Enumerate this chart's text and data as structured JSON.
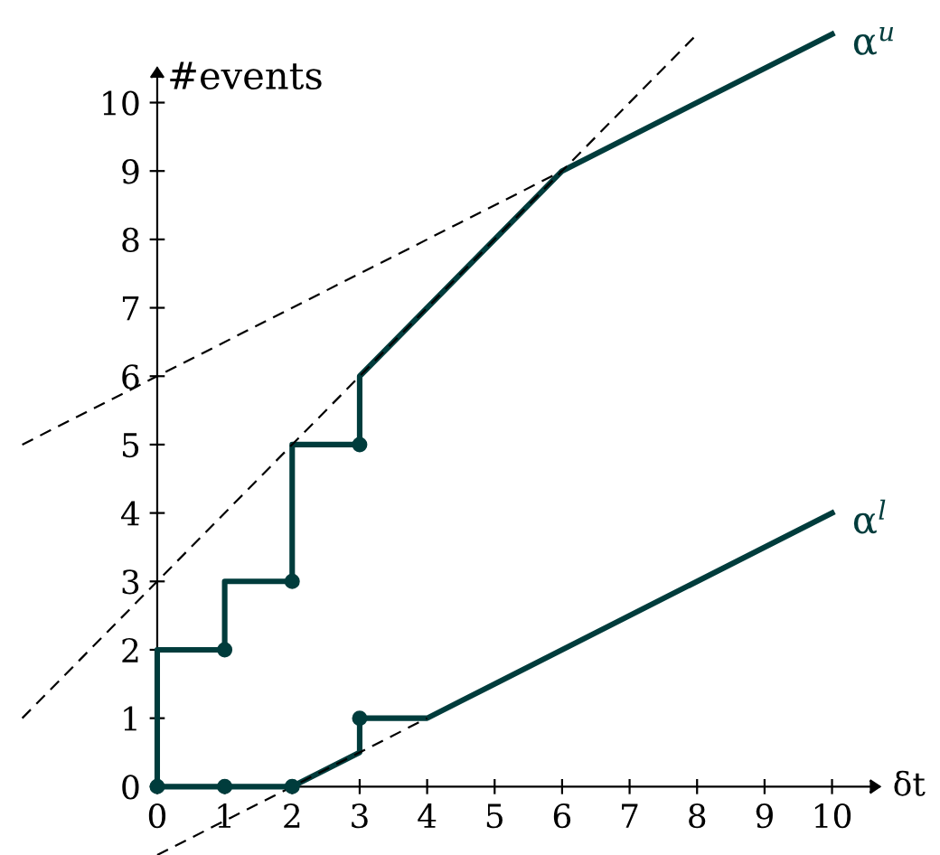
{
  "chart_data": {
    "type": "line",
    "xlabel": "δt",
    "ylabel": "#events",
    "xlim": [
      -2.33,
      11.6
    ],
    "ylim": [
      -1,
      11.5
    ],
    "xticks": [
      0,
      1,
      2,
      3,
      4,
      5,
      6,
      7,
      8,
      9,
      10
    ],
    "yticks": [
      0,
      1,
      2,
      3,
      4,
      5,
      6,
      7,
      8,
      9,
      10
    ],
    "grid": false,
    "legend": false,
    "series": [
      {
        "name": "α$^{u}$",
        "color": "#003c3c",
        "line_style": "solid",
        "x": [
          0,
          0,
          1,
          1,
          2,
          2,
          3,
          3,
          6,
          10
        ],
        "values": [
          0,
          2,
          2,
          3,
          3,
          5,
          5,
          6,
          9,
          11
        ]
      },
      {
        "name": "α$^{l}$",
        "color": "#003c3c",
        "line_style": "solid",
        "x": [
          0,
          2,
          3,
          3,
          4,
          10
        ],
        "values": [
          0,
          0,
          0.5,
          1,
          1,
          4
        ]
      },
      {
        "type": "scatter",
        "color": "#003c3c",
        "marker": "circle",
        "x": [
          0,
          1,
          2,
          3,
          1,
          2,
          3
        ],
        "values": [
          0,
          0,
          0,
          1,
          2,
          3,
          5
        ]
      },
      {
        "color": "#000000",
        "line_style": "dashed",
        "x": [
          -2,
          6
        ],
        "values": [
          5,
          9
        ]
      },
      {
        "color": "#000000",
        "line_style": "dashed",
        "x": [
          -2,
          8
        ],
        "values": [
          1,
          11
        ]
      },
      {
        "color": "#000000",
        "line_style": "dashed",
        "x": [
          0,
          4
        ],
        "values": [
          -1,
          1
        ]
      }
    ]
  }
}
